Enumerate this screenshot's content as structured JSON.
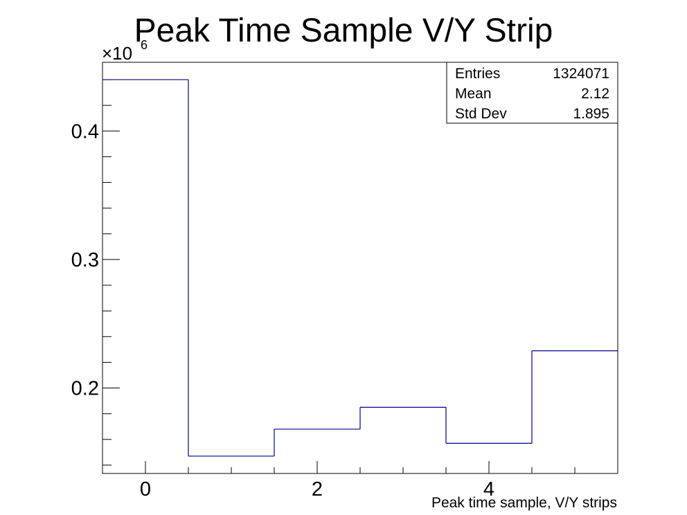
{
  "chart_data": {
    "type": "histogram",
    "title": "Peak Time Sample V/Y Strip",
    "xlabel": "Peak time sample, V/Y strips",
    "ylabel": "",
    "y_multiplier_label": "×10",
    "y_multiplier_exponent": "6",
    "bins": [
      {
        "low": -0.5,
        "high": 0.5,
        "value": 0.44
      },
      {
        "low": 0.5,
        "high": 1.5,
        "value": 0.147
      },
      {
        "low": 1.5,
        "high": 2.5,
        "value": 0.168
      },
      {
        "low": 2.5,
        "high": 3.5,
        "value": 0.185
      },
      {
        "low": 3.5,
        "high": 4.5,
        "value": 0.157
      },
      {
        "low": 4.5,
        "high": 5.5,
        "value": 0.229
      }
    ],
    "xlim": [
      -0.5,
      5.5
    ],
    "ylim": [
      0.1335,
      0.4535
    ],
    "x_major_ticks": [
      0,
      2,
      4
    ],
    "x_tick_labels": [
      "0",
      "2",
      "4"
    ],
    "y_major_ticks": [
      0.2,
      0.3,
      0.4
    ],
    "y_tick_labels": [
      "0.2",
      "0.3",
      "0.4"
    ],
    "line_color": "#00008b",
    "grid": false,
    "stats_box": {
      "placement": "top-right",
      "rows": [
        {
          "label": "Entries",
          "value": "1324071"
        },
        {
          "label": "Mean",
          "value": "2.12"
        },
        {
          "label": "Std Dev",
          "value": "1.895"
        }
      ]
    }
  }
}
